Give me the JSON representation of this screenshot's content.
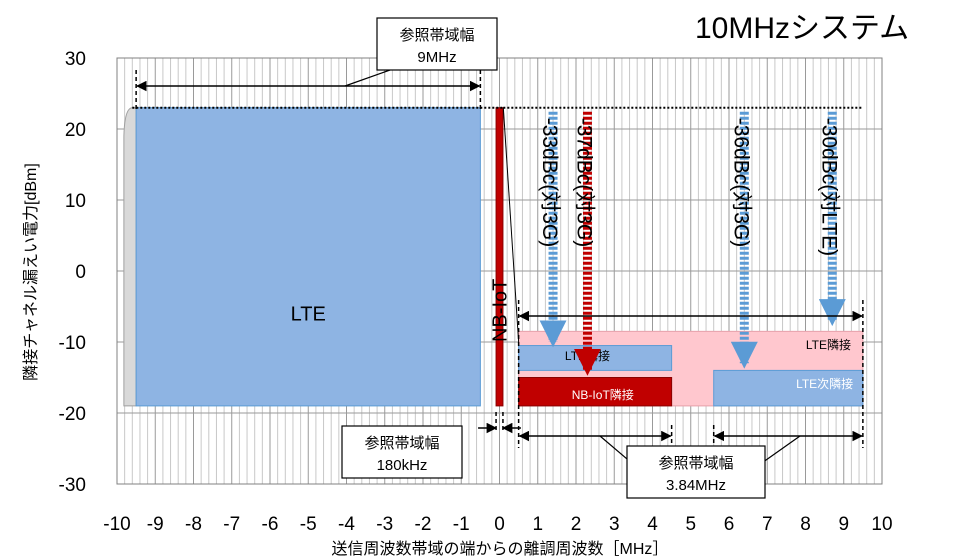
{
  "chart_data": {
    "type": "area",
    "title": "10MHzシステム",
    "xlabel": "送信周波数帯域の端からの離調周波数［MHz］",
    "ylabel": "隣接チャネル漏えい電力[dBm]",
    "xlim": [
      -10,
      10
    ],
    "ylim": [
      -30,
      30
    ],
    "x_ticks": [
      "-10",
      "-9",
      "-8",
      "-7",
      "-6",
      "-5",
      "-4",
      "-3",
      "-2",
      "-1",
      "0",
      "1",
      "2",
      "3",
      "4",
      "5",
      "6",
      "7",
      "8",
      "9",
      "10"
    ],
    "y_ticks": [
      "30",
      "20",
      "10",
      "0",
      "-10",
      "-20",
      "-30"
    ],
    "grid": "vertical minor 0.2 MHz, horizontal major 10 dB",
    "max_power_dbm": 23,
    "regions": [
      {
        "name": "LTE",
        "x": [
          -9.5,
          -0.5
        ],
        "y": [
          -19,
          23
        ],
        "color": "#8eb4e3"
      },
      {
        "name": "NB-IoT",
        "x": [
          -0.09,
          0.09
        ],
        "y": [
          -19,
          23
        ],
        "color": "#c00000"
      },
      {
        "name": "LTE隣接",
        "x": [
          0.5,
          9.5
        ],
        "y": [
          -19,
          -8.5
        ],
        "color": "#ffc7ce"
      },
      {
        "name": "LTE隣接",
        "x": [
          0.5,
          4.5
        ],
        "y": [
          -14,
          -10.5
        ],
        "color": "#8eb4e3"
      },
      {
        "name": "NB-IoT隣接",
        "x": [
          0.5,
          4.5
        ],
        "y": [
          -19,
          -15
        ],
        "color": "#c00000"
      },
      {
        "name": "LTE次隣接",
        "x": [
          5.6,
          9.5
        ],
        "y": [
          -19,
          -14
        ],
        "color": "#8eb4e3"
      }
    ],
    "annotations": [
      {
        "text": "-33dBc(対3G)",
        "x": 1.4,
        "from_y": 23,
        "to_y": -10,
        "color": "#5b9bd5"
      },
      {
        "text": "-37dBc(対3G)",
        "x": 2.3,
        "from_y": 23,
        "to_y": -14,
        "color": "#c00000"
      },
      {
        "text": "-36dBc(対3G)",
        "x": 6.4,
        "from_y": 23,
        "to_y": -13,
        "color": "#5b9bd5"
      },
      {
        "text": "-30dBc(対LTE)",
        "x": 8.7,
        "from_y": 23,
        "to_y": -7,
        "color": "#5b9bd5"
      }
    ],
    "callouts": [
      {
        "line1": "参照帯域幅",
        "line2": "9MHz"
      },
      {
        "line1": "参照帯域幅",
        "line2": "180kHz"
      },
      {
        "line1": "参照帯域幅",
        "line2": "3.84MHz"
      }
    ],
    "labels": {
      "lte": "LTE",
      "nbiot": "NB-IoT",
      "lte_adjacent": "LTE隣接",
      "nbiot_adjacent": "NB-IoT隣接",
      "lte_alt_adjacent": "LTE次隣接"
    }
  }
}
